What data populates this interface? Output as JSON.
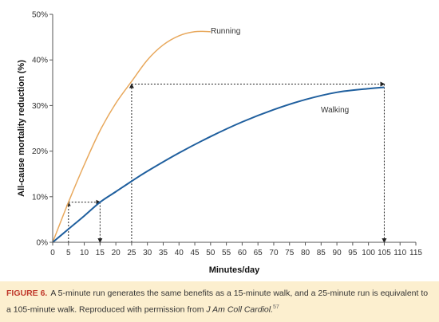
{
  "chart_data": {
    "type": "line",
    "xlabel": "Minutes/day",
    "ylabel": "All-cause mortality reduction (%)",
    "xlim": [
      0,
      115
    ],
    "ylim": [
      0,
      50
    ],
    "xticks": [
      0,
      5,
      10,
      15,
      20,
      25,
      30,
      35,
      40,
      45,
      50,
      55,
      60,
      65,
      70,
      75,
      80,
      85,
      90,
      95,
      100,
      105,
      110,
      115
    ],
    "yticks": [
      0,
      10,
      20,
      30,
      40,
      50
    ],
    "ytick_labels": [
      "0%",
      "10%",
      "20%",
      "30%",
      "40%",
      "50%"
    ],
    "grid": false,
    "series": [
      {
        "name": "Running",
        "color": "#e8a85c",
        "x": [
          0,
          5,
          10,
          15,
          20,
          25,
          30,
          35,
          40,
          45,
          50
        ],
        "y": [
          0,
          8.8,
          17,
          24.5,
          30.5,
          35.3,
          40,
          43.3,
          45.3,
          46.2,
          46.2
        ]
      },
      {
        "name": "Walking",
        "color": "#1f5f9e",
        "x": [
          0,
          5,
          10,
          15,
          20,
          25,
          30,
          40,
          50,
          60,
          70,
          80,
          90,
          100,
          105
        ],
        "y": [
          0,
          2.9,
          5.8,
          8.8,
          11.1,
          13.4,
          15.6,
          19.6,
          23.2,
          26.4,
          29.1,
          31.3,
          32.9,
          33.7,
          34
        ]
      }
    ],
    "annotations": [
      {
        "type": "arrow",
        "from": [
          5,
          0
        ],
        "to": [
          5,
          8.8
        ]
      },
      {
        "type": "arrow",
        "from": [
          5,
          8.8
        ],
        "to": [
          15,
          8.8
        ]
      },
      {
        "type": "arrow",
        "from": [
          15,
          8.8
        ],
        "to": [
          15,
          0
        ]
      },
      {
        "type": "arrow",
        "from": [
          25,
          0
        ],
        "to": [
          25,
          34.7
        ]
      },
      {
        "type": "arrow",
        "from": [
          25,
          34.7
        ],
        "to": [
          105,
          34.7
        ]
      },
      {
        "type": "arrow",
        "from": [
          105,
          34.7
        ],
        "to": [
          105,
          0
        ]
      }
    ]
  },
  "caption": {
    "figure_label": "FIGURE 6.",
    "text": "A 5-minute run generates the same benefits as a 15-minute walk, and a 25-minute run is equivalent to a 105-minute walk. Reproduced with permission from",
    "journal": "J Am Coll Cardiol.",
    "ref": "57"
  }
}
